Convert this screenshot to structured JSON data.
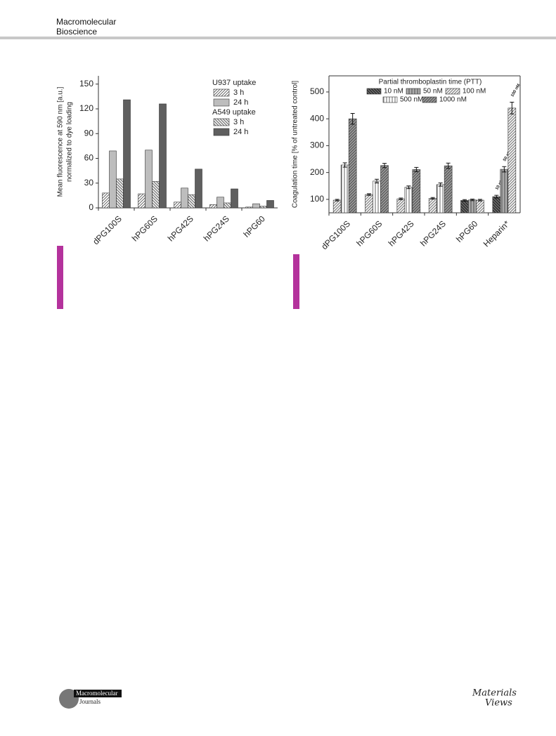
{
  "header": {
    "journal": [
      "Macromolecular",
      "Bioscience"
    ]
  },
  "chart_data": [
    {
      "type": "bar",
      "ylabel": [
        "Mean fluorescence at 590 nm [a.u.]",
        "normalized to dye loading"
      ],
      "categories": [
        "dPG100S",
        "hPG60S",
        "hPG42S",
        "hPG24S",
        "hPG60"
      ],
      "legend_groups": [
        "U937 uptake",
        "A549 uptake"
      ],
      "series": [
        {
          "name": "3 h",
          "color": "#555555",
          "background": "#ffffff",
          "fill_style": "diagonal",
          "values": [
            18,
            17,
            7,
            4,
            1
          ]
        },
        {
          "name": "24 h",
          "color": "#bdbdbd",
          "background": "#bdbdbd",
          "fill_style": "solid",
          "values": [
            69,
            70,
            24,
            13,
            5
          ]
        },
        {
          "name": "3 h",
          "color": "#555555",
          "background": "#eeeeee",
          "fill_style": "back-diagonal",
          "values": [
            35,
            32,
            16,
            6,
            2
          ]
        },
        {
          "name": "24 h",
          "color": "#5f5f5f",
          "background": "#5f5f5f",
          "fill_style": "solid",
          "values": [
            131,
            126,
            47,
            23,
            9
          ]
        }
      ],
      "ylim": [
        0,
        160
      ],
      "yticks": [
        0,
        30,
        60,
        90,
        120,
        150
      ]
    },
    {
      "type": "bar",
      "legend_title": "Partial thromboplastin time (PTT)",
      "ylabel": [
        "Coagulation time [% of untreated control]"
      ],
      "categories": [
        "dPG100S",
        "hPG60S",
        "hPG42S",
        "hPG24S",
        "hPG60",
        "Heparin*"
      ],
      "series": [
        {
          "name": "10 nM",
          "color": "#888888",
          "background": "#333333",
          "fill_style": "back-diagonal",
          "values": [
            null,
            null,
            null,
            null,
            96,
            110
          ],
          "errors": [
            null,
            null,
            null,
            null,
            3,
            5
          ]
        },
        {
          "name": "50 nM",
          "color": "#444444",
          "background": "#aaaaaa",
          "fill_style": "vertical",
          "values": [
            null,
            null,
            null,
            null,
            98,
            212
          ],
          "errors": [
            null,
            null,
            null,
            null,
            3,
            10
          ]
        },
        {
          "name": "100 nM",
          "color": "#666666",
          "background": "#f2f2f2",
          "fill_style": "diagonal",
          "values": [
            97,
            118,
            102,
            104,
            97,
            440
          ],
          "errors": [
            3,
            3,
            3,
            3,
            3,
            22
          ]
        },
        {
          "name": "500 nM",
          "color": "#555555",
          "background": "#ffffff",
          "fill_style": "vertical",
          "values": [
            228,
            168,
            145,
            155,
            null,
            null
          ],
          "errors": [
            8,
            7,
            5,
            6,
            null,
            null
          ]
        },
        {
          "name": "1000 nM",
          "color": "#444444",
          "background": "#9a9a9a",
          "fill_style": "diagonal",
          "values": [
            400,
            226,
            211,
            225,
            null,
            null
          ],
          "errors": [
            20,
            8,
            8,
            10,
            null,
            null
          ]
        }
      ],
      "annotations": [
        "10 nM",
        "50 nM",
        "100 nM"
      ],
      "frame": true,
      "ylim": [
        50,
        560
      ],
      "yticks": [
        100,
        200,
        300,
        400,
        500
      ]
    }
  ],
  "footer": {
    "left_logo": [
      "Macromolecular",
      "Journals"
    ],
    "right_logo": [
      "Materials",
      "Views"
    ]
  }
}
